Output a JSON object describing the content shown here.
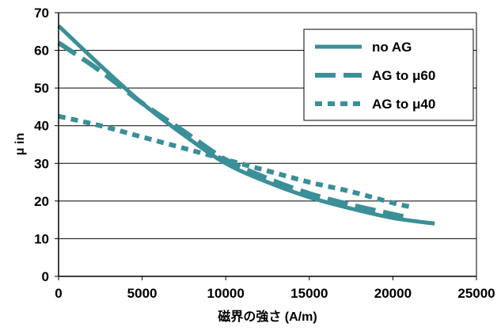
{
  "chart_data": {
    "type": "line",
    "xlabel": "磁界の強さ (A/m)",
    "ylabel": "μ in",
    "xlim": [
      0,
      25000
    ],
    "ylim": [
      0,
      70
    ],
    "xticks": [
      0,
      5000,
      10000,
      15000,
      20000,
      25000
    ],
    "yticks": [
      0,
      10,
      20,
      30,
      40,
      50,
      60,
      70
    ],
    "grid": "horizontal",
    "legend_position": "top-right",
    "series": [
      {
        "name": "no AG",
        "style": "solid",
        "color": "#3a8f98",
        "x": [
          0,
          2500,
          5000,
          7500,
          10000,
          12500,
          15000,
          17500,
          20000,
          22500
        ],
        "y": [
          66.5,
          56,
          46,
          37.5,
          30,
          25,
          21,
          18,
          15.5,
          14
        ]
      },
      {
        "name": "AG to μ60",
        "style": "long-dash",
        "color": "#3a8f98",
        "x": [
          0,
          2500,
          5000,
          7500,
          10000,
          12500,
          15000,
          17500,
          20000,
          21000
        ],
        "y": [
          62,
          54.5,
          46,
          38.5,
          31,
          26,
          22,
          19,
          16.5,
          15.5
        ]
      },
      {
        "name": "AG to μ40",
        "style": "short-dash",
        "color": "#3a8f98",
        "x": [
          0,
          2500,
          5000,
          7500,
          10000,
          12500,
          15000,
          17500,
          20000,
          21000
        ],
        "y": [
          42.5,
          40,
          37,
          34,
          31,
          28,
          25,
          22.5,
          19.5,
          18.5
        ]
      }
    ]
  }
}
